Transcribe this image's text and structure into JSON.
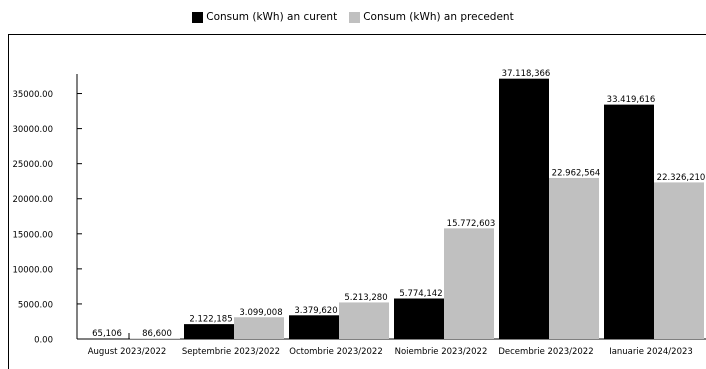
{
  "chart_data": {
    "type": "bar",
    "title": "",
    "xlabel": "",
    "ylabel": "",
    "categories": [
      "August 2023/2022",
      "Septembrie 2023/2022",
      "Octombrie 2023/2022",
      "Noiembrie 2023/2022",
      "Decembrie 2023/2022",
      "Ianuarie 2024/2023"
    ],
    "series": [
      {
        "name": "Consum (kWh) an curent",
        "color": "#000000",
        "values": [
          65.106,
          2122.185,
          3379.62,
          5774.142,
          37118.366,
          33419.616
        ],
        "labels": [
          "65,106",
          "2.122,185",
          "3.379,620",
          "5.774,142",
          "37.118,366",
          "33.419,616"
        ]
      },
      {
        "name": "Consum (kWh) an precedent",
        "color": "#c0c0c0",
        "values": [
          86.6,
          3099.008,
          5213.28,
          15772.603,
          22962.564,
          22326.21
        ],
        "labels": [
          "86,600",
          "3.099,008",
          "5.213,280",
          "15.772,603",
          "22.962,564",
          "22.326,210"
        ]
      }
    ],
    "ylim": [
      0,
      37500
    ],
    "yticks": [
      0,
      5000,
      10000,
      15000,
      20000,
      25000,
      30000,
      35000
    ],
    "ytick_labels": [
      "0.00",
      "5000.00",
      "10000.00",
      "15000.00",
      "20000.00",
      "25000.00",
      "30000.00",
      "35000.00"
    ],
    "legend_position": "top-center",
    "grid": false
  }
}
